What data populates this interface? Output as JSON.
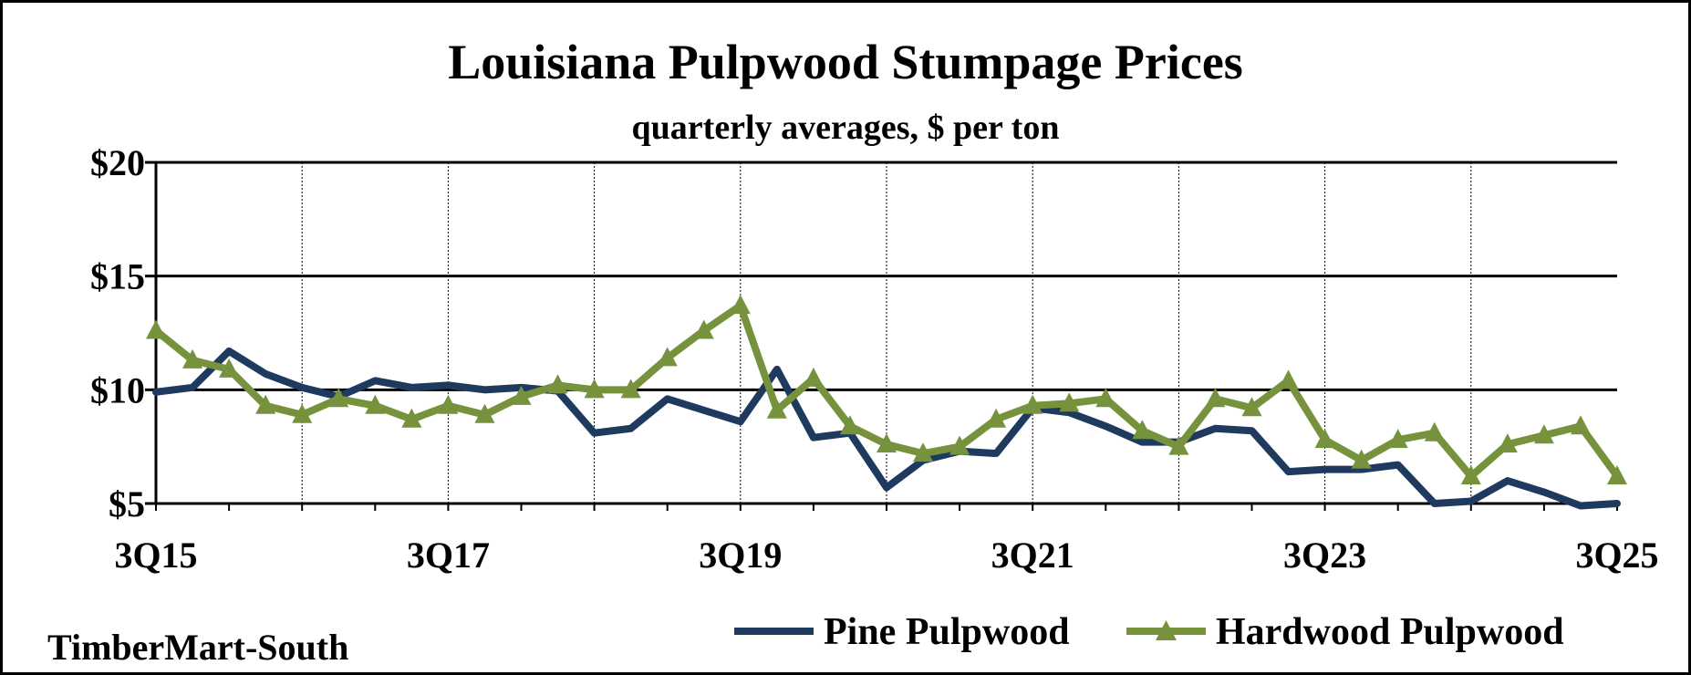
{
  "chart_data": {
    "type": "line",
    "title": "Louisiana Pulpwood Stumpage Prices",
    "subtitle": "quarterly averages, $ per ton",
    "source": "TimberMart-South",
    "y_ticks": [
      "$20",
      "$15",
      "$10",
      "$5"
    ],
    "y_tick_values": [
      20,
      15,
      10,
      5
    ],
    "ylim": [
      5,
      20
    ],
    "x_tick_labels": [
      "3Q15",
      "3Q17",
      "3Q19",
      "3Q21",
      "3Q23",
      "3Q25"
    ],
    "x_tick_indices": [
      0,
      8,
      16,
      24,
      32,
      40
    ],
    "categories": [
      "3Q15",
      "4Q15",
      "1Q16",
      "2Q16",
      "3Q16",
      "4Q16",
      "1Q17",
      "2Q17",
      "3Q17",
      "4Q17",
      "1Q18",
      "2Q18",
      "3Q18",
      "4Q18",
      "1Q19",
      "2Q19",
      "3Q19",
      "4Q19",
      "1Q20",
      "2Q20",
      "3Q20",
      "4Q20",
      "1Q21",
      "2Q21",
      "3Q21",
      "4Q21",
      "1Q22",
      "2Q22",
      "3Q22",
      "4Q22",
      "1Q23",
      "2Q23",
      "3Q23",
      "4Q23",
      "1Q24",
      "2Q24",
      "3Q24",
      "4Q24",
      "1Q25",
      "2Q25",
      "3Q25"
    ],
    "grid": "horizontal solid at ticks, vertical dotted every 4 quarters",
    "legend_position": "bottom-right",
    "series": [
      {
        "name": "Pine Pulpwood",
        "color": "#1f3a5f",
        "marker": "none",
        "values": [
          9.9,
          10.1,
          11.7,
          10.7,
          10.1,
          9.7,
          10.4,
          10.1,
          10.2,
          10.0,
          10.1,
          9.95,
          8.1,
          8.3,
          9.6,
          9.1,
          8.6,
          10.9,
          7.9,
          8.1,
          5.7,
          6.9,
          7.3,
          7.2,
          9.2,
          9.0,
          8.4,
          7.7,
          7.7,
          8.3,
          8.2,
          6.4,
          6.5,
          6.5,
          6.7,
          5.0,
          5.1,
          6.0,
          5.5,
          4.9,
          5.0
        ]
      },
      {
        "name": "Hardwood Pulpwood",
        "color": "#76923c",
        "marker": "triangle",
        "values": [
          12.6,
          11.3,
          10.9,
          9.3,
          8.9,
          9.6,
          9.3,
          8.7,
          9.3,
          8.9,
          9.7,
          10.2,
          10.0,
          10.0,
          11.4,
          12.6,
          13.7,
          9.1,
          10.5,
          8.4,
          7.6,
          7.2,
          7.5,
          8.7,
          9.3,
          9.4,
          9.6,
          8.2,
          7.5,
          9.6,
          9.2,
          10.4,
          7.8,
          6.9,
          7.8,
          8.1,
          6.2,
          7.6,
          8.0,
          8.4,
          6.2
        ]
      }
    ]
  }
}
